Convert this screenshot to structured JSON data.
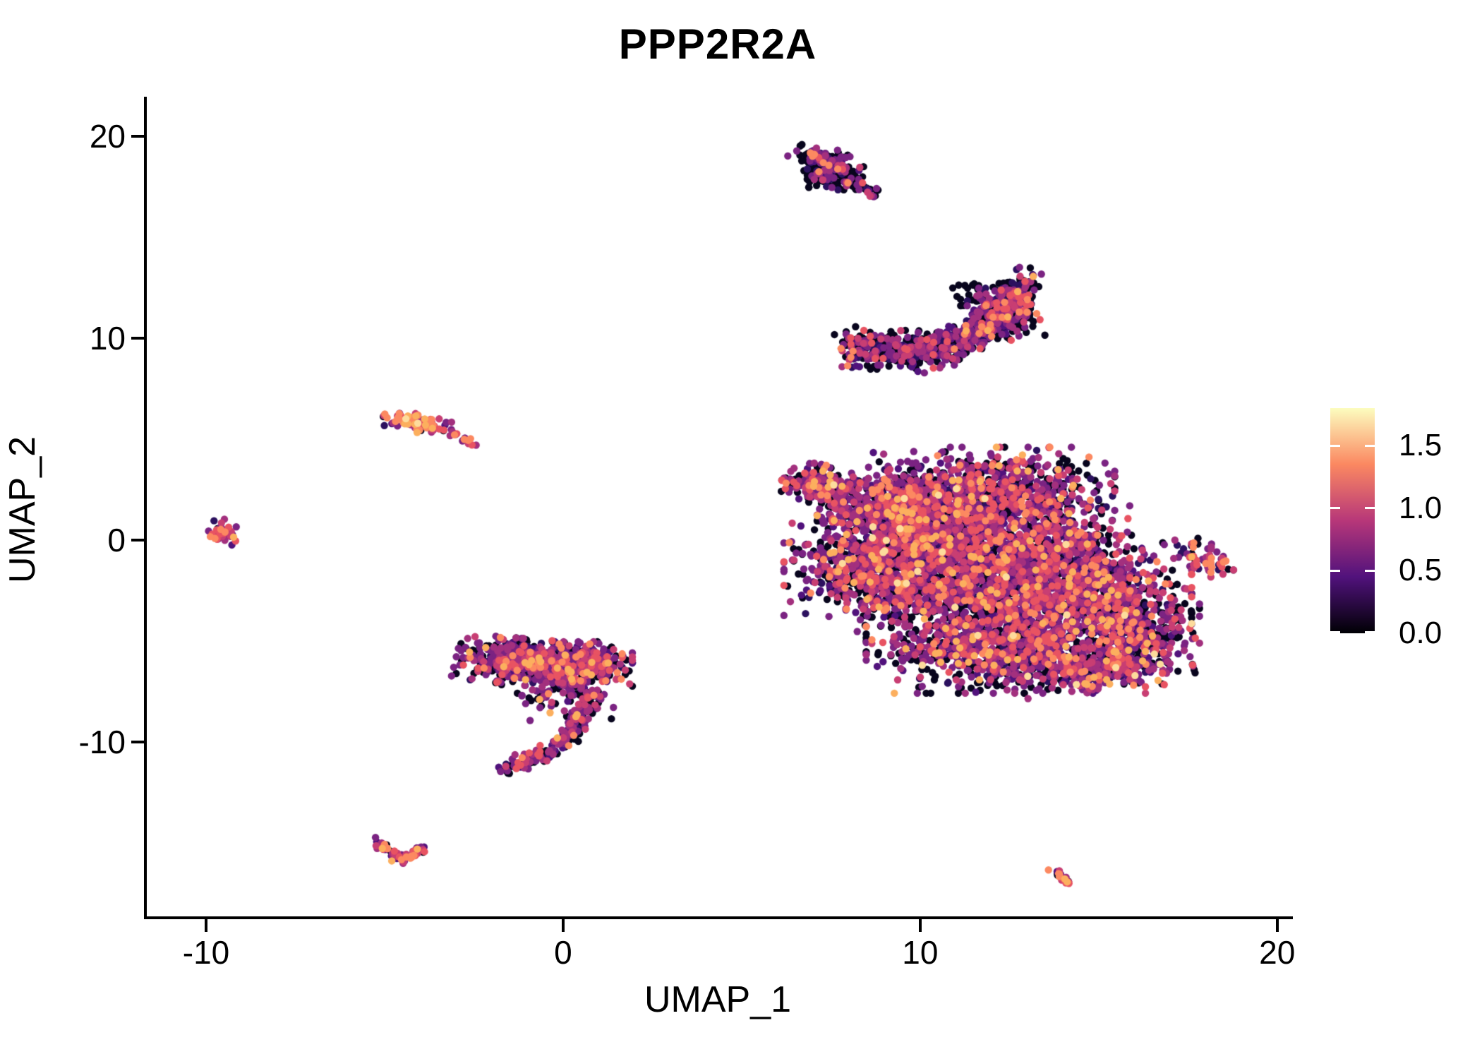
{
  "chart_data": {
    "type": "scatter",
    "title": "PPP2R2A",
    "xlabel": "UMAP_1",
    "ylabel": "UMAP_2",
    "background": "#ffffff",
    "grid": false,
    "legend_position": "right",
    "x_ticks": [
      -10,
      0,
      10,
      20
    ],
    "x_tick_labels": [
      "-10",
      "0",
      "10",
      "20"
    ],
    "y_ticks": [
      20,
      10,
      0,
      -10
    ],
    "y_tick_labels": [
      "20",
      "10",
      "0",
      "-10"
    ],
    "x_domain": [
      -11.72,
      20.4
    ],
    "y_domain": [
      -18.71,
      21.96
    ],
    "point_radius": 5.2,
    "palette": [
      "#08051d",
      "#2c115f",
      "#51127c",
      "#7b2382",
      "#a3307e",
      "#c83e73",
      "#e85362",
      "#fc8961",
      "#fcaf5e",
      "#fddc9c"
    ],
    "colorbar": {
      "labels": [
        "0.0",
        "0.5",
        "1.0",
        "1.5"
      ],
      "tick_values": [
        0,
        0.5,
        1.0,
        1.5
      ],
      "max_value": 1.8,
      "gradient_stops": [
        [
          0,
          "#000004"
        ],
        [
          0.25,
          "#51127c"
        ],
        [
          0.5,
          "#b73779"
        ],
        [
          0.75,
          "#fb8861"
        ],
        [
          1,
          "#fcfdbf"
        ]
      ]
    },
    "clusters": [
      {
        "name": "top-small-cluster",
        "weights": [
          0.5,
          0.1,
          0.06,
          0.18,
          0.08,
          0.04,
          0.02,
          0.02,
          0,
          0
        ],
        "patches": [
          {
            "t": "g",
            "cx": 7.35,
            "cy": 18.85,
            "sx": 0.42,
            "sy": 0.26,
            "rot": -35,
            "n": 130
          },
          {
            "t": "g",
            "cx": 7.45,
            "cy": 18.1,
            "sx": 0.42,
            "sy": 0.33,
            "rot": 0,
            "n": 115
          },
          {
            "t": "p",
            "pts": [
              [
                7.8,
                17.9
              ],
              [
                8.3,
                17.5
              ],
              [
                8.8,
                17.15
              ]
            ],
            "jx": 0.12,
            "jy": 0.12,
            "n": 45
          }
        ]
      },
      {
        "name": "banana-cluster",
        "weights": [
          0.47,
          0.08,
          0.06,
          0.18,
          0.1,
          0.05,
          0.04,
          0.015,
          0.005,
          0
        ],
        "patches": [
          {
            "t": "p",
            "pts": [
              [
                7.95,
                9.65
              ],
              [
                8.9,
                9.4
              ],
              [
                10.1,
                9.3
              ],
              [
                11.3,
                10.0
              ],
              [
                12.3,
                11.2
              ],
              [
                13.0,
                12.55
              ]
            ],
            "jx": 0.18,
            "jy": 0.45,
            "n": 800
          },
          {
            "t": "g",
            "cx": 12.3,
            "cy": 11.4,
            "sx": 0.4,
            "sy": 0.75,
            "rot": 40,
            "n": 140
          }
        ]
      },
      {
        "name": "left-small-warm-cluster",
        "weights": [
          0.08,
          0.02,
          0.03,
          0.14,
          0.12,
          0.13,
          0.18,
          0.2,
          0.08,
          0.02
        ],
        "patches": [
          {
            "t": "g",
            "cx": -4.05,
            "cy": 5.8,
            "sx": 0.45,
            "sy": 0.2,
            "rot": -18,
            "n": 85
          }
        ]
      },
      {
        "name": "tiny-dot-pair",
        "weights": [
          0,
          0,
          0,
          0.1,
          0.1,
          0.2,
          0.3,
          0.3,
          0.1,
          0
        ],
        "patches": [
          {
            "t": "g",
            "cx": -2.98,
            "cy": 5.25,
            "sx": 0.06,
            "sy": 0.06,
            "rot": 0,
            "n": 3
          },
          {
            "t": "g",
            "cx": -2.7,
            "cy": 4.93,
            "sx": 0.18,
            "sy": 0.08,
            "rot": -38,
            "n": 9
          }
        ]
      },
      {
        "name": "far-left-cluster",
        "weights": [
          0.06,
          0.03,
          0.05,
          0.24,
          0.16,
          0.12,
          0.16,
          0.12,
          0.06,
          0
        ],
        "patches": [
          {
            "t": "g",
            "cx": -9.55,
            "cy": 0.35,
            "sx": 0.2,
            "sy": 0.28,
            "rot": 15,
            "n": 42
          }
        ]
      },
      {
        "name": "hook-cluster",
        "weights": [
          0.36,
          0.06,
          0.06,
          0.22,
          0.12,
          0.07,
          0.06,
          0.03,
          0.02,
          0
        ],
        "patches": [
          {
            "t": "g",
            "cx": -1.35,
            "cy": -6.0,
            "sx": 0.72,
            "sy": 0.5,
            "rot": -8,
            "n": 420
          },
          {
            "t": "g",
            "cx": 0.1,
            "cy": -6.3,
            "sx": 0.8,
            "sy": 0.55,
            "rot": 0,
            "n": 380
          },
          {
            "t": "g",
            "cx": 0.85,
            "cy": -6.05,
            "sx": 0.35,
            "sy": 0.4,
            "rot": 0,
            "n": 120
          },
          {
            "t": "g",
            "cx": -0.2,
            "cy": -7.7,
            "sx": 0.7,
            "sy": 0.55,
            "rot": 0,
            "n": 60
          },
          {
            "t": "p",
            "pts": [
              [
                0.95,
                -7.3
              ],
              [
                0.55,
                -8.8
              ],
              [
                0.1,
                -9.9
              ],
              [
                -0.8,
                -10.8
              ],
              [
                -1.7,
                -11.35
              ]
            ],
            "jx": 0.16,
            "jy": 0.16,
            "n": 230
          }
        ]
      },
      {
        "name": "big-central-cluster",
        "weights": [
          0.3,
          0.05,
          0.06,
          0.22,
          0.14,
          0.08,
          0.08,
          0.04,
          0.025,
          0.005
        ],
        "patches": [
          {
            "t": "g",
            "cx": 7.3,
            "cy": 2.7,
            "sx": 0.5,
            "sy": 0.4,
            "rot": -30,
            "n": 220
          },
          {
            "t": "g",
            "cx": 9.3,
            "cy": 1.7,
            "sx": 0.95,
            "sy": 0.85,
            "rot": 0,
            "n": 520
          },
          {
            "t": "g",
            "cx": 12.0,
            "cy": 2.3,
            "sx": 1.5,
            "sy": 1.0,
            "rot": 0,
            "n": 850
          },
          {
            "t": "g",
            "cx": 10.2,
            "cy": 0.2,
            "sx": 1.3,
            "sy": 1.0,
            "rot": 0,
            "n": 650
          },
          {
            "t": "g",
            "cx": 8.6,
            "cy": -1.4,
            "sx": 1.05,
            "sy": 1.05,
            "rot": 0,
            "n": 600
          },
          {
            "t": "g",
            "cx": 11.6,
            "cy": -2.3,
            "sx": 1.6,
            "sy": 1.3,
            "rot": 0,
            "n": 1050
          },
          {
            "t": "g",
            "cx": 14.5,
            "cy": -2.4,
            "sx": 1.35,
            "sy": 1.15,
            "rot": 0,
            "n": 800
          },
          {
            "t": "g",
            "cx": 16.1,
            "cy": -4.4,
            "sx": 0.75,
            "sy": 0.8,
            "rot": 0,
            "n": 280
          },
          {
            "t": "g",
            "cx": 12.4,
            "cy": -5.4,
            "sx": 1.7,
            "sy": 0.95,
            "rot": 0,
            "n": 850
          },
          {
            "t": "g",
            "cx": 15.2,
            "cy": -6.3,
            "sx": 1.05,
            "sy": 0.5,
            "rot": 10,
            "n": 300
          },
          {
            "t": "g",
            "cx": 13.8,
            "cy": 0.0,
            "sx": 0.9,
            "sy": 0.9,
            "rot": 0,
            "n": 250
          }
        ]
      },
      {
        "name": "right-small-cluster",
        "weights": [
          0.2,
          0.05,
          0.06,
          0.22,
          0.16,
          0.13,
          0.12,
          0.05,
          0.01,
          0
        ],
        "patches": [
          {
            "t": "g",
            "cx": 17.85,
            "cy": -0.95,
            "sx": 0.3,
            "sy": 0.42,
            "rot": 35,
            "n": 58
          }
        ]
      },
      {
        "name": "bottom-v-cluster",
        "weights": [
          0.12,
          0.02,
          0.04,
          0.16,
          0.12,
          0.14,
          0.18,
          0.14,
          0.08,
          0
        ],
        "patches": [
          {
            "t": "p",
            "pts": [
              [
                -5.2,
                -14.95
              ],
              [
                -4.55,
                -15.85
              ]
            ],
            "jx": 0.1,
            "jy": 0.12,
            "n": 38
          },
          {
            "t": "p",
            "pts": [
              [
                -4.55,
                -15.85
              ],
              [
                -3.85,
                -15.2
              ]
            ],
            "jx": 0.1,
            "jy": 0.12,
            "n": 34
          }
        ]
      },
      {
        "name": "bottom-right-tiny-cluster",
        "weights": [
          0.12,
          0,
          0.02,
          0.08,
          0.1,
          0.16,
          0.26,
          0.18,
          0.08,
          0
        ],
        "patches": [
          {
            "t": "p",
            "pts": [
              [
                13.72,
                -16.35
              ],
              [
                14.2,
                -17.0
              ]
            ],
            "jx": 0.07,
            "jy": 0.07,
            "n": 22
          }
        ]
      }
    ]
  }
}
